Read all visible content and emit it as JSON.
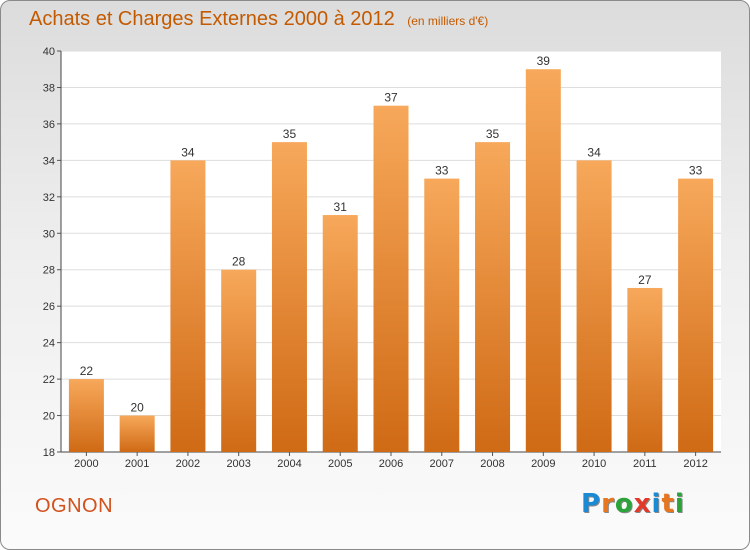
{
  "header": {
    "title": "Achats et Charges Externes 2000 à 2012",
    "subtitle": "(en milliers d'€)"
  },
  "footer": {
    "commune": "OGNON",
    "logo_text": "Proxiti",
    "logo_colors": [
      "#1a8ad4",
      "#e8761e",
      "#2aa33a",
      "#e23a2a",
      "#1a8ad4",
      "#e8761e",
      "#2aa33a"
    ]
  },
  "colors": {
    "bar_top": "#f7a85a",
    "bar_bottom": "#cf6a15",
    "title": "#c45a00",
    "commune": "#d2511c"
  },
  "chart_data": {
    "type": "bar",
    "categories": [
      "2000",
      "2001",
      "2002",
      "2003",
      "2004",
      "2005",
      "2006",
      "2007",
      "2008",
      "2009",
      "2010",
      "2011",
      "2012"
    ],
    "values": [
      22,
      20,
      34,
      28,
      35,
      31,
      37,
      33,
      35,
      39,
      34,
      27,
      33
    ],
    "ylim": [
      18,
      40
    ],
    "yticks": [
      "18",
      "20",
      "22",
      "24",
      "26",
      "28",
      "30",
      "32",
      "34",
      "36",
      "38",
      "40"
    ],
    "grid": true,
    "data_labels": true
  }
}
